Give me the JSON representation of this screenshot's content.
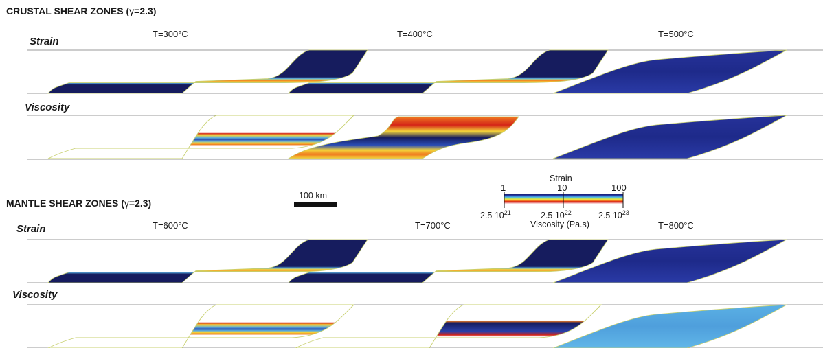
{
  "crustal": {
    "title": "CRUSTAL SHEAR ZONES (",
    "gamma": "γ",
    "title_tail": "=2.3)",
    "strain_label": "Strain",
    "viscosity_label": "Viscosity",
    "temperatures": [
      "T=300°C",
      "T=400°C",
      "T=500°C"
    ]
  },
  "mantle": {
    "title": "MANTLE SHEAR ZONES (",
    "gamma": "γ",
    "title_tail": "=2.3)",
    "strain_label": "Strain",
    "viscosity_label": "Viscosity",
    "temperatures": [
      "T=600°C",
      "T=700°C",
      "T=800°C"
    ]
  },
  "scale_bar": {
    "label": "100 km"
  },
  "colorbar": {
    "strain_title": "Strain",
    "strain_ticks": [
      "1",
      "10",
      "100"
    ],
    "viscosity_ticks": [
      {
        "base": "2.5 10",
        "exp": "21"
      },
      {
        "base": "2.5 10",
        "exp": "22"
      },
      {
        "base": "2.5 10",
        "exp": "23"
      }
    ],
    "viscosity_title": "Viscosity (Pa.s)",
    "colors": [
      "#1a1f6e",
      "#20309a",
      "#2a5fc0",
      "#4aa8e0",
      "#6fd0c8",
      "#b8e060",
      "#f6e03a",
      "#f6a020",
      "#e8401a",
      "#c01818",
      "#f0a0a0",
      "#fff0f0"
    ]
  },
  "colors": {
    "navy": "#161c5e",
    "mid_blue": "#2836a0",
    "light_blue": "#5aaee0",
    "yellow": "#f4d43a",
    "orange": "#ef7a20",
    "red": "#d42418",
    "outline": "#c8d070"
  },
  "panels": [
    {
      "group": "crustal",
      "row": "strain",
      "col": 0,
      "type": "localized"
    },
    {
      "group": "crustal",
      "row": "strain",
      "col": 1,
      "type": "localized"
    },
    {
      "group": "crustal",
      "row": "strain",
      "col": 2,
      "type": "distributed"
    },
    {
      "group": "crustal",
      "row": "viscosity",
      "col": 0,
      "type": "visc-thin"
    },
    {
      "group": "crustal",
      "row": "viscosity",
      "col": 1,
      "type": "visc-warm"
    },
    {
      "group": "crustal",
      "row": "viscosity",
      "col": 2,
      "type": "distributed"
    },
    {
      "group": "mantle",
      "row": "strain",
      "col": 0,
      "type": "localized"
    },
    {
      "group": "mantle",
      "row": "strain",
      "col": 1,
      "type": "localized"
    },
    {
      "group": "mantle",
      "row": "strain",
      "col": 2,
      "type": "distributed"
    },
    {
      "group": "mantle",
      "row": "viscosity",
      "col": 0,
      "type": "visc-thin"
    },
    {
      "group": "mantle",
      "row": "viscosity",
      "col": 1,
      "type": "visc-band"
    },
    {
      "group": "mantle",
      "row": "viscosity",
      "col": 2,
      "type": "distributed-light"
    }
  ]
}
